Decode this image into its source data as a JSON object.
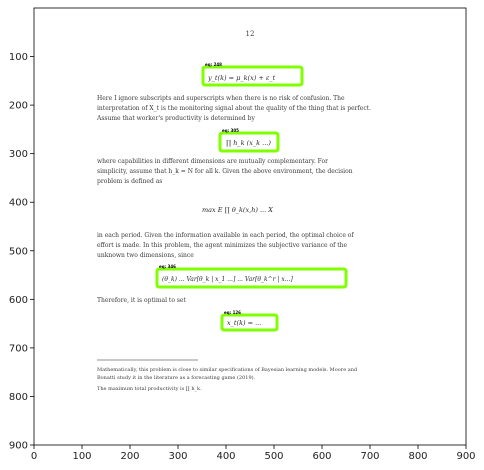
{
  "page": {
    "page_number": "12",
    "axes": {
      "x_ticks": [
        "0",
        "100",
        "200",
        "300",
        "400",
        "500",
        "600",
        "700",
        "800",
        "900"
      ],
      "y_ticks": [
        "100",
        "200",
        "300",
        "400",
        "500",
        "600",
        "700",
        "800",
        "900"
      ]
    },
    "colors": {
      "highlight": "#7fff00",
      "axis": "#000000"
    }
  },
  "document": {
    "para1": [
      "Here I ignore subscripts and superscripts when there is no risk of confusion. The",
      "interpretation of X_t is the monitoring signal about the quality of the thing that is perfect.",
      "Assume that worker's productivity is determined by"
    ],
    "para2": [
      "where capabilities in different dimensions are mutually complementary. For",
      "simplicity, assume that h_k = N for all k. Given the above environment, the decision",
      "problem is defined as"
    ],
    "para3": [
      "in each period. Given the information available in each period, the optimal choice of",
      "effort is made. In this problem, the agent minimizes the subjective variance of the",
      "unknown two dimensions, since"
    ],
    "para4": "Therefore, it is optimal to set",
    "footnote1": [
      "Mathematically, this problem is close to similar specifications of Bayesian learning models. Moore and",
      "Bonatti study it in the literature as a forecasting game (2019)."
    ],
    "footnote2": "The maximum total productivity is ∏ h_k."
  },
  "equations": {
    "eq1": "y_t(k) = μ_k(x) + ε_t",
    "eq2": "∏ h_k (x_k ...)",
    "eq3": "max E ∏ θ_k(x,h) ... X",
    "eq4": "(θ_k) ... Var[θ_k | x_1 ...] ... Var[θ_k^r | x...]",
    "eq5": "x_t(k) = ..."
  },
  "boxes": [
    {
      "tag": "eq: 248",
      "name": "eq1"
    },
    {
      "tag": "eq: 305",
      "name": "eq2"
    },
    {
      "tag": "eq: 346",
      "name": "eq4"
    },
    {
      "tag": "eq: 126",
      "name": "eq5"
    }
  ]
}
